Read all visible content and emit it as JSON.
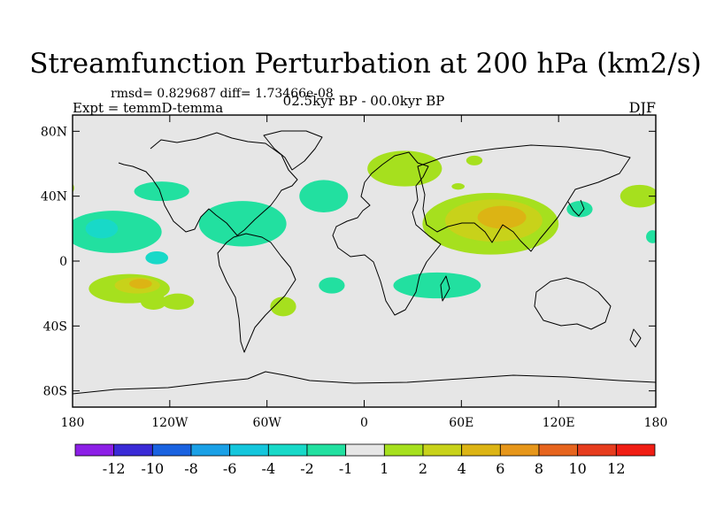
{
  "chart_data": {
    "type": "contour-map",
    "title": "Streamfunction Perturbation at 200 hPa (km2/s)",
    "stats": "rmsd= 0.829687 diff= 1.73466e-08",
    "experiment": "Expt = temmD-temma",
    "period": "02.5kyr BP - 00.0kyr BP",
    "season": "DJF",
    "x_ticks": [
      {
        "lon": -180,
        "label": "180"
      },
      {
        "lon": -120,
        "label": "120W"
      },
      {
        "lon": -60,
        "label": "60W"
      },
      {
        "lon": 0,
        "label": "0"
      },
      {
        "lon": 60,
        "label": "60E"
      },
      {
        "lon": 120,
        "label": "120E"
      },
      {
        "lon": 180,
        "label": "180"
      }
    ],
    "y_ticks": [
      {
        "lat": 80,
        "label": "80N"
      },
      {
        "lat": 40,
        "label": "40N"
      },
      {
        "lat": 0,
        "label": "0"
      },
      {
        "lat": -40,
        "label": "40S"
      },
      {
        "lat": -80,
        "label": "80S"
      }
    ],
    "lon_range": [
      -180,
      180
    ],
    "lat_range": [
      -90,
      90
    ],
    "colorbar": {
      "labels": [
        "-12",
        "-10",
        "-8",
        "-6",
        "-4",
        "-2",
        "-1",
        "1",
        "2",
        "4",
        "6",
        "8",
        "10",
        "12"
      ],
      "colors": [
        "#8c1fe6",
        "#3a2ad6",
        "#1a62e0",
        "#1aa0e6",
        "#14c6dc",
        "#18d9c8",
        "#22e0a0",
        "#e6e6e6",
        "#a6e01e",
        "#c8d21a",
        "#dcb414",
        "#e6961a",
        "#e6641e",
        "#e63c1e",
        "#f01e14"
      ]
    },
    "anomaly_regions": [
      {
        "name": "north-pacific-negative",
        "lon": -125,
        "lat": 43,
        "rx": 17,
        "ry": 6,
        "level": -1
      },
      {
        "name": "subtropical-pacific-negative",
        "lon": -155,
        "lat": 18,
        "rx": 30,
        "ry": 13,
        "level": -1
      },
      {
        "name": "caribbean-negative",
        "lon": -75,
        "lat": 23,
        "rx": 27,
        "ry": 14,
        "level": -1
      },
      {
        "name": "hawaii-negative-core",
        "lon": -162,
        "lat": 20,
        "rx": 10,
        "ry": 6,
        "level": -2
      },
      {
        "name": "central-pacific-negative-core",
        "lon": -128,
        "lat": 2,
        "rx": 7,
        "ry": 4,
        "level": -2
      },
      {
        "name": "north-atlantic-negative",
        "lon": -25,
        "lat": 40,
        "rx": 15,
        "ry": 10,
        "level": -1
      },
      {
        "name": "south-pacific-positive",
        "lon": -145,
        "lat": -17,
        "rx": 25,
        "ry": 9,
        "level": 1
      },
      {
        "name": "south-pacific-positive-core",
        "lon": -140,
        "lat": -15,
        "rx": 14,
        "ry": 5,
        "level": 2
      },
      {
        "name": "south-pacific-positive-center",
        "lon": -138,
        "lat": -14,
        "rx": 7,
        "ry": 3,
        "level": 4
      },
      {
        "name": "south-america-positive",
        "lon": -130,
        "lat": -25,
        "rx": 8,
        "ry": 5,
        "level": 1
      },
      {
        "name": "east-pacific-positive",
        "lon": -115,
        "lat": -25,
        "rx": 10,
        "ry": 5,
        "level": 1
      },
      {
        "name": "south-atlantic-positive",
        "lon": -50,
        "lat": -28,
        "rx": 8,
        "ry": 6,
        "level": 1
      },
      {
        "name": "europe-positive",
        "lon": 25,
        "lat": 57,
        "rx": 23,
        "ry": 11,
        "level": 1
      },
      {
        "name": "siberia-positive",
        "lon": 68,
        "lat": 62,
        "rx": 5,
        "ry": 3,
        "level": 1
      },
      {
        "name": "caspian-positive",
        "lon": 58,
        "lat": 46,
        "rx": 4,
        "ry": 2,
        "level": 1
      },
      {
        "name": "asia-positive",
        "lon": 78,
        "lat": 23,
        "rx": 42,
        "ry": 19,
        "level": 1
      },
      {
        "name": "asia-positive-core",
        "lon": 80,
        "lat": 25,
        "rx": 30,
        "ry": 13,
        "level": 2
      },
      {
        "name": "asia-positive-center",
        "lon": 85,
        "lat": 27,
        "rx": 15,
        "ry": 7,
        "level": 4
      },
      {
        "name": "south-atlantic-negative",
        "lon": -20,
        "lat": -15,
        "rx": 8,
        "ry": 5,
        "level": -1
      },
      {
        "name": "indian-ocean-negative",
        "lon": 45,
        "lat": -15,
        "rx": 27,
        "ry": 8,
        "level": -1
      },
      {
        "name": "japan-negative",
        "lon": 133,
        "lat": 32,
        "rx": 8,
        "ry": 5,
        "level": -1
      },
      {
        "name": "north-pacific-positive",
        "lon": 170,
        "lat": 40,
        "rx": 12,
        "ry": 7,
        "level": 1
      },
      {
        "name": "dateline-negative",
        "lon": 178,
        "lat": 15,
        "rx": 4,
        "ry": 4,
        "level": -1
      },
      {
        "name": "west-edge-positive",
        "lon": -183,
        "lat": 45,
        "rx": 4,
        "ry": 4,
        "level": 1
      }
    ]
  }
}
